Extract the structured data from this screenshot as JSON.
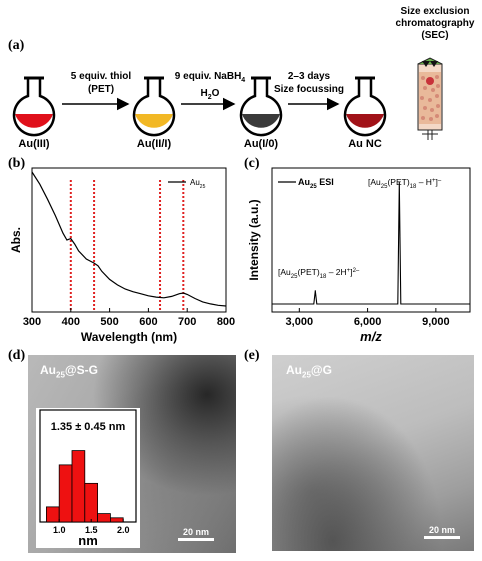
{
  "panels": {
    "a": "(a)",
    "b": "(b)",
    "c": "(c)",
    "d": "(d)",
    "e": "(e)"
  },
  "scheme": {
    "flasks": [
      {
        "label": "Au(III)",
        "color": "#e0101b"
      },
      {
        "label": "Au(II/I)",
        "color": "#f2b825"
      },
      {
        "label": "Au(I/0)",
        "color": "#3a3a3a"
      },
      {
        "label": "Au NC",
        "color": "#a11218"
      }
    ],
    "arrows": [
      {
        "line1": "5 equiv. thiol",
        "line2": "(PET)"
      },
      {
        "line1": "9 equiv. NaBH",
        "line1_sub": "4",
        "line2": "H",
        "line2_sub": "2",
        "line2_tail": "O"
      },
      {
        "line1": "2–3 days",
        "line2": "Size focussing"
      }
    ],
    "sec_title_lines": [
      "Size exclusion",
      "chromatography",
      "(SEC)"
    ]
  },
  "chart_data": [
    {
      "type": "line",
      "panel": "b",
      "xlabel": "Wavelength (nm)",
      "ylabel": "Abs.",
      "xlim": [
        300,
        800
      ],
      "xticks": [
        300,
        400,
        500,
        600,
        700,
        800
      ],
      "legend": {
        "name": "Au",
        "sub": "25"
      },
      "series": [
        {
          "name": "Au25",
          "x": [
            300,
            320,
            340,
            360,
            380,
            390,
            400,
            410,
            420,
            440,
            460,
            470,
            480,
            500,
            520,
            540,
            560,
            580,
            600,
            620,
            640,
            660,
            680,
            690,
            700,
            720,
            740,
            760,
            780,
            800
          ],
          "y": [
            1.0,
            0.91,
            0.8,
            0.68,
            0.55,
            0.5,
            0.51,
            0.47,
            0.42,
            0.36,
            0.33,
            0.31,
            0.27,
            0.21,
            0.17,
            0.14,
            0.12,
            0.105,
            0.09,
            0.08,
            0.075,
            0.085,
            0.105,
            0.11,
            0.1,
            0.07,
            0.045,
            0.03,
            0.02,
            0.015
          ]
        }
      ],
      "marker_lines": [
        400,
        460,
        630,
        690
      ]
    },
    {
      "type": "line",
      "panel": "c",
      "xlabel": "m/z",
      "ylabel": "Intensity (a.u.)",
      "xlim": [
        1800,
        10500
      ],
      "xticks": [
        3000,
        6000,
        9000
      ],
      "xtick_labels": [
        "3,000",
        "6,000",
        "9,000"
      ],
      "legend": {
        "name": "Au",
        "sub": "25",
        "tail": " ESI"
      },
      "peaks": [
        {
          "x": 3704,
          "y": 0.1
        },
        {
          "x": 7393,
          "y": 0.92
        }
      ],
      "annotations": [
        {
          "pre": "[Au",
          "s1": "25",
          "mid": "(PET)",
          "s2": "18",
          "post": " – H",
          "sup": "+",
          "end": "]",
          "sup2": "–"
        },
        {
          "pre": "[Au",
          "s1": "25",
          "mid": "(PET)",
          "s2": "18",
          "post": " – 2H",
          "sup": "+",
          "end": "]",
          "sup2": "2–"
        }
      ]
    },
    {
      "type": "bar",
      "panel": "d-inset",
      "title": "1.35 ± 0.45 nm",
      "xlabel": "nm",
      "xticks": [
        1.0,
        1.5,
        2.0
      ],
      "xtick_labels": [
        "1.0",
        "1.5",
        "2.0"
      ],
      "bins": [
        0.8,
        1.0,
        1.2,
        1.4,
        1.6,
        1.8
      ],
      "bin_width": 0.2,
      "values": [
        0.18,
        0.68,
        0.85,
        0.46,
        0.1,
        0.05
      ],
      "bar_color": "#ee1111"
    }
  ],
  "images": {
    "d": {
      "title_pre": "Au",
      "title_sub": "25",
      "title_post": "@S-G",
      "scalebar": "20 nm"
    },
    "e": {
      "title_pre": "Au",
      "title_sub": "25",
      "title_post": "@G",
      "scalebar": "20 nm"
    }
  }
}
